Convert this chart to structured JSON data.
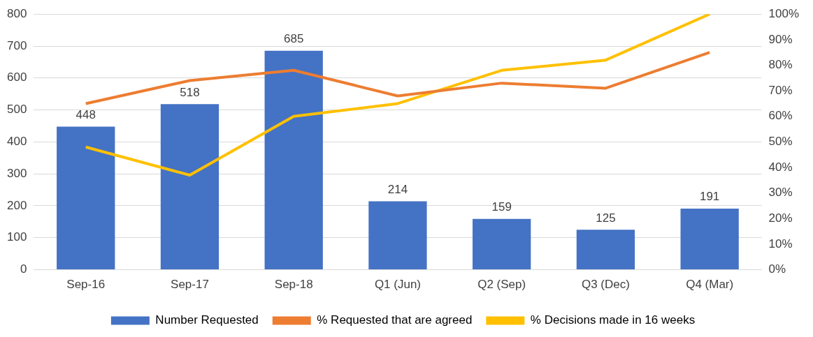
{
  "chart_data": {
    "type": "bar",
    "categories": [
      "Sep-16",
      "Sep-17",
      "Sep-18",
      "Q1 (Jun)",
      "Q2 (Sep)",
      "Q3 (Dec)",
      "Q4 (Mar)"
    ],
    "series": [
      {
        "name": "Number Requested",
        "color": "#4472c4",
        "values": [
          448,
          518,
          685,
          214,
          159,
          125,
          191
        ],
        "value_labels": [
          "448",
          "518",
          "685",
          "214",
          "159",
          "125",
          "191"
        ]
      },
      {
        "name": "% Requested that are agreed",
        "type": "line",
        "axis": "y2",
        "color": "#ed7d31",
        "values": [
          65,
          74,
          78,
          68,
          73,
          71,
          85
        ]
      },
      {
        "name": "% Decisions made in 16 weeks",
        "type": "line",
        "axis": "y2",
        "color": "#ffc000",
        "values": [
          48,
          37,
          60,
          65,
          78,
          82,
          100
        ]
      }
    ],
    "ylim": [
      0,
      800
    ],
    "yticks": [
      0,
      100,
      200,
      300,
      400,
      500,
      600,
      700,
      800
    ],
    "y2lim": [
      0,
      100
    ],
    "y2ticks": [
      {
        "value": 0,
        "label": "0%"
      },
      {
        "value": 10,
        "label": "10%"
      },
      {
        "value": 20,
        "label": "20%"
      },
      {
        "value": 30,
        "label": "30%"
      },
      {
        "value": 40,
        "label": "40%"
      },
      {
        "value": 50,
        "label": "50%"
      },
      {
        "value": 60,
        "label": "60%"
      },
      {
        "value": 70,
        "label": "70%"
      },
      {
        "value": 80,
        "label": "80%"
      },
      {
        "value": 90,
        "label": "90%"
      },
      {
        "value": 100,
        "label": "100%"
      }
    ],
    "grid": "y",
    "legend": "bottom",
    "marker": "none"
  }
}
